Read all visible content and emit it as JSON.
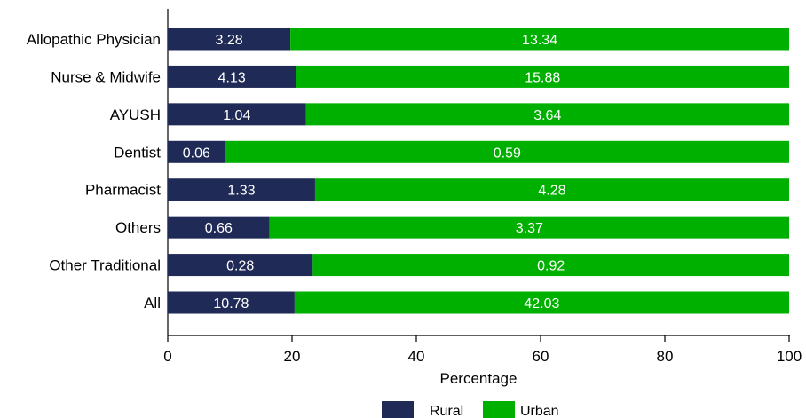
{
  "chart_data": {
    "type": "bar",
    "orientation": "horizontal",
    "stacked": true,
    "normalized_to_percent": true,
    "categories": [
      "Allopathic Physician",
      "Nurse & Midwife",
      "AYUSH",
      "Dentist",
      "Pharmacist",
      "Others",
      "Other Traditional",
      "All"
    ],
    "series": [
      {
        "name": "Rural",
        "color": "#1f2a56",
        "values": [
          3.28,
          4.13,
          1.04,
          0.06,
          1.33,
          0.66,
          0.28,
          10.78
        ]
      },
      {
        "name": "Urban",
        "color": "#00b000",
        "values": [
          13.34,
          15.88,
          3.64,
          0.59,
          4.28,
          3.37,
          0.92,
          42.03
        ]
      }
    ],
    "xlabel": "Percentage",
    "ylabel": "",
    "xlim": [
      0,
      100
    ],
    "xticks": [
      0,
      20,
      40,
      60,
      80,
      100
    ],
    "grid": false,
    "legend_position": "bottom"
  }
}
